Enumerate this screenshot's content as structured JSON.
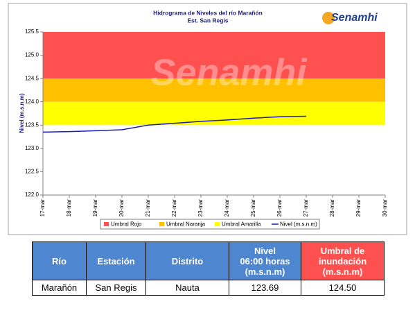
{
  "chart_data": {
    "type": "line",
    "title": "Hidrograma de Niveles del río Marañón",
    "subtitle": "Est. San Regis",
    "ylabel": "Nivel (m.s.n.m)",
    "watermark": "Senamhi",
    "logo": "Senamhi",
    "categories": [
      "17-mar",
      "18-mar",
      "19-mar",
      "20-mar",
      "21-mar",
      "22-mar",
      "23-mar",
      "24-mar",
      "25-mar",
      "26-mar",
      "27-mar",
      "28-mar",
      "29-mar",
      "30-mar"
    ],
    "thresholds": [
      {
        "name": "Umbral Rojo",
        "color": "#ff5050",
        "from": 124.5,
        "to": 125.5
      },
      {
        "name": "Umbral Naranja",
        "color": "#ffc000",
        "from": 124.0,
        "to": 124.5
      },
      {
        "name": "Umbral Amarilla",
        "color": "#ffff00",
        "from": 123.5,
        "to": 124.0
      }
    ],
    "series": [
      {
        "name": "Nivel (m.s.n.m)",
        "color": "#1a1ab8",
        "values": [
          123.35,
          123.36,
          123.38,
          123.4,
          123.5,
          123.54,
          123.58,
          123.61,
          123.65,
          123.68,
          123.69,
          null,
          null,
          null
        ]
      }
    ],
    "ylim": [
      122.0,
      125.5
    ],
    "yticks": [
      {
        "value": 122,
        "label": "122.0"
      },
      122.5,
      {
        "value": 123,
        "label": "123.0"
      },
      123.5,
      {
        "value": 124,
        "label": "124.0"
      },
      124.5,
      {
        "value": 125,
        "label": "125.0"
      },
      125.5
    ],
    "grid": false
  },
  "table": {
    "header": [
      "Río",
      "Estación",
      "Distrito",
      "Nivel\n06:00 horas\n(m.s.n.m)",
      "Umbral de\ninundación\n(m.s.n.m)"
    ],
    "rows": [
      [
        "Marañón",
        "San Regis",
        "Nauta",
        "123.69",
        "124.50"
      ]
    ]
  }
}
